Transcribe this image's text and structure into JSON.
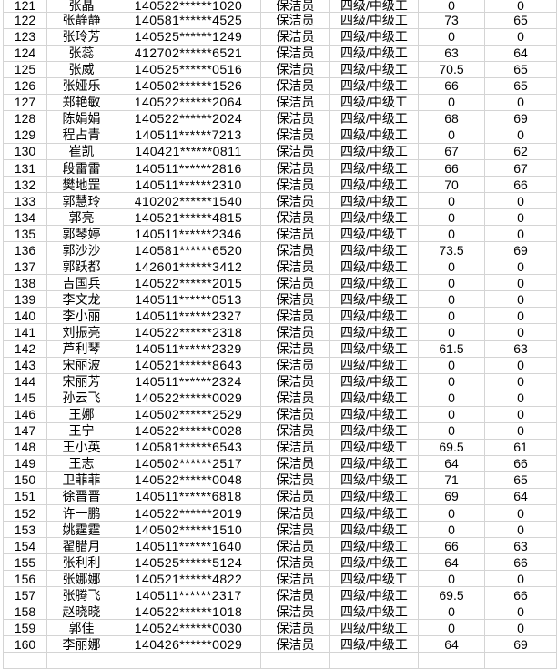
{
  "app": {
    "type": "spreadsheet-table-view"
  },
  "colors": {
    "background": "#ffffff",
    "gridline": "#d4d4d4",
    "text": "#000000"
  },
  "sheet": {
    "column_keys": [
      "row-number",
      "name",
      "id-number",
      "position",
      "level",
      "score-1",
      "score-2"
    ],
    "rows": [
      [
        "121",
        "张晶",
        "140522******1020",
        "保洁员",
        "四级/中级工",
        "0",
        "0"
      ],
      [
        "122",
        "张静静",
        "140581******4525",
        "保洁员",
        "四级/中级工",
        "73",
        "65"
      ],
      [
        "123",
        "张玲芳",
        "140525******1249",
        "保洁员",
        "四级/中级工",
        "0",
        "0"
      ],
      [
        "124",
        "张蕊",
        "412702******6521",
        "保洁员",
        "四级/中级工",
        "63",
        "64"
      ],
      [
        "125",
        "张威",
        "140525******0516",
        "保洁员",
        "四级/中级工",
        "70.5",
        "65"
      ],
      [
        "126",
        "张娅乐",
        "140502******1526",
        "保洁员",
        "四级/中级工",
        "66",
        "65"
      ],
      [
        "127",
        "郑艳敏",
        "140522******2064",
        "保洁员",
        "四级/中级工",
        "0",
        "0"
      ],
      [
        "128",
        "陈娟娟",
        "140522******2024",
        "保洁员",
        "四级/中级工",
        "68",
        "69"
      ],
      [
        "129",
        "程占青",
        "140511******7213",
        "保洁员",
        "四级/中级工",
        "0",
        "0"
      ],
      [
        "130",
        "崔凯",
        "140421******0811",
        "保洁员",
        "四级/中级工",
        "67",
        "62"
      ],
      [
        "131",
        "段雷雷",
        "140511******2816",
        "保洁员",
        "四级/中级工",
        "66",
        "67"
      ],
      [
        "132",
        "樊地罡",
        "140511******2310",
        "保洁员",
        "四级/中级工",
        "70",
        "66"
      ],
      [
        "133",
        "郭慧玲",
        "410202******1540",
        "保洁员",
        "四级/中级工",
        "0",
        "0"
      ],
      [
        "134",
        "郭亮",
        "140521******4815",
        "保洁员",
        "四级/中级工",
        "0",
        "0"
      ],
      [
        "135",
        "郭琴婷",
        "140511******2346",
        "保洁员",
        "四级/中级工",
        "0",
        "0"
      ],
      [
        "136",
        "郭沙沙",
        "140581******6520",
        "保洁员",
        "四级/中级工",
        "73.5",
        "69"
      ],
      [
        "137",
        "郭跃都",
        "142601******3412",
        "保洁员",
        "四级/中级工",
        "0",
        "0"
      ],
      [
        "138",
        "吉国兵",
        "140522******2015",
        "保洁员",
        "四级/中级工",
        "0",
        "0"
      ],
      [
        "139",
        "李文龙",
        "140511******0513",
        "保洁员",
        "四级/中级工",
        "0",
        "0"
      ],
      [
        "140",
        "李小丽",
        "140511******2327",
        "保洁员",
        "四级/中级工",
        "0",
        "0"
      ],
      [
        "141",
        "刘振亮",
        "140522******2318",
        "保洁员",
        "四级/中级工",
        "0",
        "0"
      ],
      [
        "142",
        "芦利琴",
        "140511******2329",
        "保洁员",
        "四级/中级工",
        "61.5",
        "63"
      ],
      [
        "143",
        "宋丽波",
        "140521******8643",
        "保洁员",
        "四级/中级工",
        "0",
        "0"
      ],
      [
        "144",
        "宋丽芳",
        "140511******2324",
        "保洁员",
        "四级/中级工",
        "0",
        "0"
      ],
      [
        "145",
        "孙云飞",
        "140522******0029",
        "保洁员",
        "四级/中级工",
        "0",
        "0"
      ],
      [
        "146",
        "王娜",
        "140502******2529",
        "保洁员",
        "四级/中级工",
        "0",
        "0"
      ],
      [
        "147",
        "王宁",
        "140522******0028",
        "保洁员",
        "四级/中级工",
        "0",
        "0"
      ],
      [
        "148",
        "王小英",
        "140581******6543",
        "保洁员",
        "四级/中级工",
        "69.5",
        "61"
      ],
      [
        "149",
        "王志",
        "140502******2517",
        "保洁员",
        "四级/中级工",
        "64",
        "66"
      ],
      [
        "150",
        "卫菲菲",
        "140522******0048",
        "保洁员",
        "四级/中级工",
        "71",
        "65"
      ],
      [
        "151",
        "徐晋晋",
        "140511******6818",
        "保洁员",
        "四级/中级工",
        "69",
        "64"
      ],
      [
        "152",
        "许一鹏",
        "140522******2019",
        "保洁员",
        "四级/中级工",
        "0",
        "0"
      ],
      [
        "153",
        "姚霆霆",
        "140502******1510",
        "保洁员",
        "四级/中级工",
        "0",
        "0"
      ],
      [
        "154",
        "翟腊月",
        "140511******1640",
        "保洁员",
        "四级/中级工",
        "66",
        "63"
      ],
      [
        "155",
        "张利利",
        "140525******5124",
        "保洁员",
        "四级/中级工",
        "64",
        "66"
      ],
      [
        "156",
        "张娜娜",
        "140521******4822",
        "保洁员",
        "四级/中级工",
        "0",
        "0"
      ],
      [
        "157",
        "张腾飞",
        "140511******2317",
        "保洁员",
        "四级/中级工",
        "69.5",
        "66"
      ],
      [
        "158",
        "赵晓晓",
        "140522******1018",
        "保洁员",
        "四级/中级工",
        "0",
        "0"
      ],
      [
        "159",
        "郭佳",
        "140524******0030",
        "保洁员",
        "四级/中级工",
        "0",
        "0"
      ],
      [
        "160",
        "李丽娜",
        "140426******0029",
        "保洁员",
        "四级/中级工",
        "64",
        "69"
      ]
    ]
  }
}
